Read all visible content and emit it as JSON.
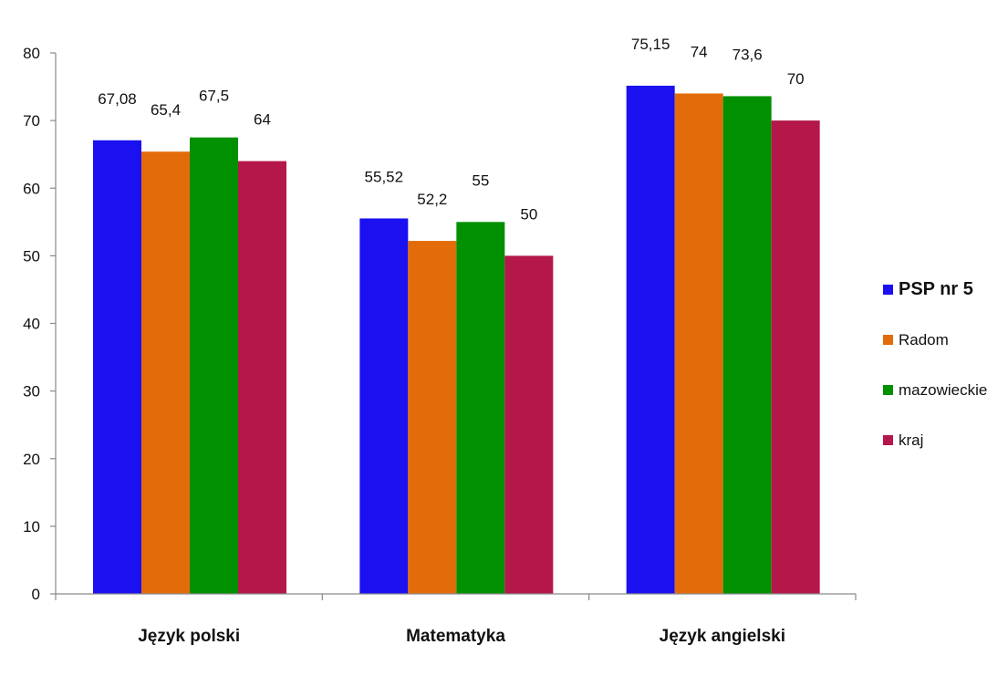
{
  "chart_data": {
    "type": "bar",
    "title": "",
    "xlabel": "",
    "ylabel": "",
    "ylim": [
      0,
      80
    ],
    "yticks": [
      0,
      10,
      20,
      30,
      40,
      50,
      60,
      70,
      80
    ],
    "categories": [
      "Język polski",
      "Matematyka",
      "Język angielski"
    ],
    "series": [
      {
        "name": "PSP nr 5",
        "color": "#1a10f0",
        "values": [
          67.08,
          55.52,
          75.15
        ],
        "labels": [
          "67,08",
          "55,52",
          "75,15"
        ]
      },
      {
        "name": "Radom",
        "color": "#e36c0a",
        "values": [
          65.4,
          52.2,
          74
        ],
        "labels": [
          "65,4",
          "52,2",
          "74"
        ]
      },
      {
        "name": "mazowieckie",
        "color": "#009000",
        "values": [
          67.5,
          55,
          73.6
        ],
        "labels": [
          "67,5",
          "55",
          "73,6"
        ]
      },
      {
        "name": "kraj",
        "color": "#b5174a",
        "values": [
          64,
          50,
          70
        ],
        "labels": [
          "64",
          "50",
          "70"
        ]
      }
    ],
    "grid": false,
    "legend_position": "right"
  }
}
